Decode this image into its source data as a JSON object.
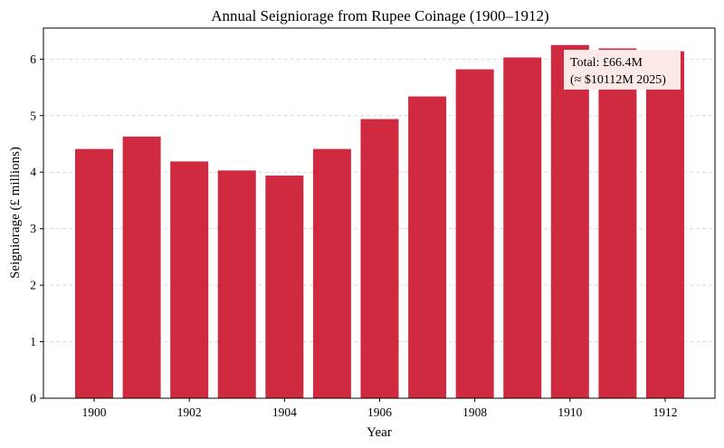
{
  "chart_data": {
    "type": "bar",
    "title": "Annual Seigniorage from Rupee Coinage (1900–1912)",
    "xlabel": "Year",
    "ylabel": "Seigniorage (£ millions)",
    "categories": [
      1900,
      1901,
      1902,
      1903,
      1904,
      1905,
      1906,
      1907,
      1908,
      1909,
      1910,
      1911,
      1912
    ],
    "values": [
      4.41,
      4.63,
      4.19,
      4.03,
      3.94,
      4.41,
      4.94,
      5.34,
      5.82,
      6.03,
      6.25,
      6.19,
      6.14
    ],
    "ylim": [
      0,
      6.55
    ],
    "yticks": [
      0,
      1,
      2,
      3,
      4,
      5,
      6
    ],
    "xticks": [
      1900,
      1902,
      1904,
      1906,
      1908,
      1910,
      1912
    ],
    "grid": true,
    "bar_color": "#cc1a33",
    "annotation": {
      "line1": "Total: £66.4M",
      "line2": "(≈ $10112M 2025)",
      "position": "top-right",
      "box_color": "#fbe9e8"
    }
  }
}
